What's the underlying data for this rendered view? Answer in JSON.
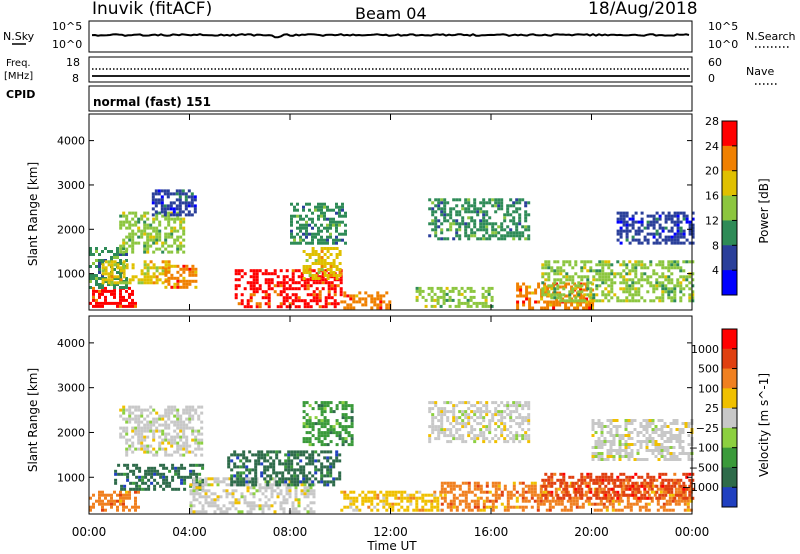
{
  "header": {
    "station": "Inuvik (fitACF)",
    "beam": "Beam 04",
    "date": "18/Aug/2018",
    "mode": "normal (fast) 151"
  },
  "strip_labels": {
    "nsky": "N.Sky",
    "nsearch": "N.Search",
    "freq_line1": "Freq.",
    "freq_line2": "[MHz]",
    "nave": "Nave",
    "cpid": "CPID"
  },
  "strip_ticks": {
    "nsky_left": [
      "10^5",
      "10^0"
    ],
    "nsky_right": [
      "10^5",
      "10^0"
    ],
    "freq_left": [
      "18",
      "8"
    ],
    "nave_right": [
      "60",
      "0"
    ]
  },
  "chart_data": [
    {
      "type": "heatmap",
      "panel": "power",
      "ylabel": "Slant Range [km]",
      "xlabel": "",
      "x_ticks": [
        "00:00",
        "04:00",
        "08:00",
        "12:00",
        "16:00",
        "20:00",
        "00:00"
      ],
      "xlim_hours": [
        0,
        24
      ],
      "y_ticks": [
        1000,
        2000,
        3000,
        4000
      ],
      "ylim": [
        180,
        4600
      ],
      "colorbar": {
        "label": "Power [dB]",
        "ticks": [
          "4",
          "8",
          "12",
          "16",
          "20",
          "24",
          "28"
        ],
        "colors": [
          "#0000ff",
          "#2a3f9a",
          "#2e8b57",
          "#8cc63f",
          "#e0c000",
          "#f08000",
          "#ff0000"
        ]
      },
      "regions": [
        {
          "t0": 0.0,
          "t1": 1.8,
          "r0": 250,
          "r1": 700,
          "level": 6
        },
        {
          "t0": 0.0,
          "t1": 1.5,
          "r0": 700,
          "r1": 1600,
          "level": 2
        },
        {
          "t0": 0.5,
          "t1": 3.2,
          "r0": 800,
          "r1": 1300,
          "level": 4
        },
        {
          "t0": 1.2,
          "t1": 3.8,
          "r0": 1500,
          "r1": 2400,
          "level": 3
        },
        {
          "t0": 2.5,
          "t1": 4.2,
          "r0": 2300,
          "r1": 2900,
          "level": 1
        },
        {
          "t0": 3.0,
          "t1": 4.2,
          "r0": 700,
          "r1": 1200,
          "level": 5
        },
        {
          "t0": 5.8,
          "t1": 10.0,
          "r0": 250,
          "r1": 1100,
          "level": 6
        },
        {
          "t0": 8.5,
          "t1": 10.0,
          "r0": 900,
          "r1": 1600,
          "level": 4
        },
        {
          "t0": 8.0,
          "t1": 10.2,
          "r0": 1700,
          "r1": 2600,
          "level": 2
        },
        {
          "t0": 10.0,
          "t1": 12.0,
          "r0": 250,
          "r1": 600,
          "level": 5
        },
        {
          "t0": 13.0,
          "t1": 16.0,
          "r0": 250,
          "r1": 700,
          "level": 3
        },
        {
          "t0": 13.5,
          "t1": 17.5,
          "r0": 1800,
          "r1": 2700,
          "level": 2
        },
        {
          "t0": 17.0,
          "t1": 20.0,
          "r0": 250,
          "r1": 800,
          "level": 5
        },
        {
          "t0": 18.0,
          "t1": 24.0,
          "r0": 400,
          "r1": 1300,
          "level": 3
        },
        {
          "t0": 21.0,
          "t1": 24.0,
          "r0": 1700,
          "r1": 2400,
          "level": 1
        }
      ]
    },
    {
      "type": "heatmap",
      "panel": "velocity",
      "ylabel": "Slant Range [km]",
      "xlabel": "Time UT",
      "x_ticks": [
        "00:00",
        "04:00",
        "08:00",
        "12:00",
        "16:00",
        "20:00",
        "00:00"
      ],
      "xlim_hours": [
        0,
        24
      ],
      "y_ticks": [
        1000,
        2000,
        3000,
        4000
      ],
      "ylim": [
        180,
        4600
      ],
      "colorbar": {
        "label": "Velocity [m s^-1]",
        "ticks": [
          "1000",
          "500",
          "100",
          "25",
          "−25",
          "−100",
          "−500",
          "−1000"
        ],
        "colors": [
          "#2040c0",
          "#2e6b4a",
          "#3a9a3a",
          "#8cd040",
          "#c8c8c8",
          "#f0c000",
          "#f08020",
          "#e04010",
          "#ff0000"
        ]
      },
      "regions": [
        {
          "t0": 0.0,
          "t1": 2.0,
          "r0": 250,
          "r1": 700,
          "level": 6
        },
        {
          "t0": 1.0,
          "t1": 4.5,
          "r0": 700,
          "r1": 1300,
          "level": 1
        },
        {
          "t0": 1.2,
          "t1": 4.5,
          "r0": 1500,
          "r1": 2600,
          "level": 4
        },
        {
          "t0": 4.0,
          "t1": 9.0,
          "r0": 250,
          "r1": 1000,
          "level": 4
        },
        {
          "t0": 5.5,
          "t1": 10.0,
          "r0": 800,
          "r1": 1600,
          "level": 1
        },
        {
          "t0": 8.5,
          "t1": 10.5,
          "r0": 1700,
          "r1": 2700,
          "level": 2
        },
        {
          "t0": 10.0,
          "t1": 14.0,
          "r0": 250,
          "r1": 700,
          "level": 5
        },
        {
          "t0": 13.5,
          "t1": 17.5,
          "r0": 1800,
          "r1": 2700,
          "level": 4
        },
        {
          "t0": 14.0,
          "t1": 24.0,
          "r0": 250,
          "r1": 900,
          "level": 6
        },
        {
          "t0": 18.0,
          "t1": 24.0,
          "r0": 500,
          "r1": 1100,
          "level": 7
        },
        {
          "t0": 20.0,
          "t1": 24.0,
          "r0": 1400,
          "r1": 2300,
          "level": 4
        }
      ]
    }
  ]
}
